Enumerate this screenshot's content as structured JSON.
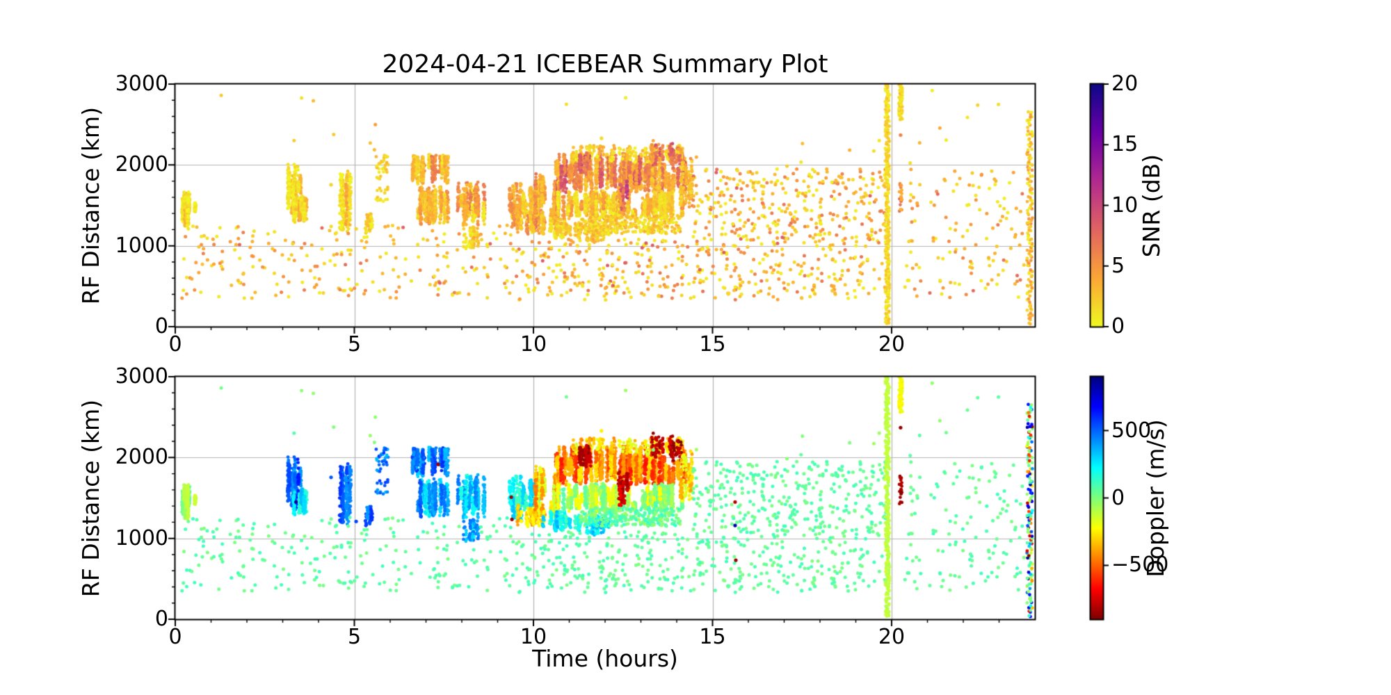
{
  "chart_data": {
    "type": "scatter",
    "title": "2024-04-21 ICEBEAR Summary Plot",
    "x": {
      "label": "Time (hours)",
      "lim": [
        0,
        24
      ],
      "ticks": [
        0,
        5,
        10,
        15,
        20
      ],
      "tick_labels": [
        "0",
        "5",
        "10",
        "15",
        "20"
      ],
      "minor_step": 1
    },
    "y": {
      "label": "RF Distance (km)",
      "lim": [
        0,
        3000
      ],
      "ticks": [
        0,
        1000,
        2000,
        3000
      ],
      "tick_labels": [
        "0",
        "1000",
        "2000",
        "3000"
      ],
      "minor_step": 200
    },
    "grid": {
      "x_values": [
        5,
        10,
        15,
        20
      ],
      "y_values": [
        1000,
        2000
      ],
      "color": "#b3b3b3"
    },
    "panels": [
      {
        "id": "snr",
        "colorbar": {
          "label": "SNR (dB)",
          "range": [
            0,
            20
          ],
          "ticks": [
            0,
            5,
            10,
            15,
            20
          ],
          "tick_labels": [
            "0",
            "5",
            "10",
            "15",
            "20"
          ],
          "colormap": "plasma_r"
        }
      },
      {
        "id": "doppler",
        "colorbar": {
          "label": "Doppler (m/s)",
          "range": [
            -900,
            900
          ],
          "ticks": [
            -500,
            0,
            500
          ],
          "tick_labels": [
            "−500",
            "0",
            "500"
          ],
          "colormap": "jet_r"
        }
      }
    ],
    "colormaps": {
      "plasma_r": {
        "top": "#0d0887",
        "bottom": "#f0f921",
        "stops": [
          [
            0,
            "#0d0887"
          ],
          [
            0.2,
            "#6a00a8"
          ],
          [
            0.4,
            "#b12a90"
          ],
          [
            0.6,
            "#e16462"
          ],
          [
            0.8,
            "#fca636"
          ],
          [
            1,
            "#f0f921"
          ]
        ]
      },
      "jet_r": {
        "top": "#00007f",
        "bottom": "#7f0000",
        "stops": [
          [
            0,
            "#00007f"
          ],
          [
            0.125,
            "#0000ff"
          ],
          [
            0.375,
            "#00ffff"
          ],
          [
            0.5,
            "#7dff7a"
          ],
          [
            0.625,
            "#ffff00"
          ],
          [
            0.875,
            "#ff0000"
          ],
          [
            1,
            "#7f0000"
          ]
        ]
      }
    },
    "point_groups": [
      {
        "label": "echo-00h",
        "style": "streak",
        "t": [
          0.12,
          0.6
        ],
        "r": [
          1230,
          1700
        ],
        "n": 380,
        "snr": [
          0.5,
          4.5
        ],
        "dop": [
          -160,
          60
        ]
      },
      {
        "label": "echo-03h-a",
        "style": "streak",
        "t": [
          3.15,
          3.55
        ],
        "r": [
          1350,
          2060
        ],
        "n": 300,
        "snr": [
          0.5,
          5
        ],
        "dop": [
          360,
          660
        ]
      },
      {
        "label": "echo-03h-b",
        "style": "streak",
        "t": [
          3.3,
          3.68
        ],
        "r": [
          1280,
          1620
        ],
        "n": 260,
        "snr": [
          0.5,
          4
        ],
        "dop": [
          140,
          380
        ]
      },
      {
        "label": "echo-04h",
        "style": "streak",
        "t": [
          4.55,
          4.9
        ],
        "r": [
          1150,
          1950
        ],
        "n": 260,
        "snr": [
          0.5,
          5
        ],
        "dop": [
          360,
          640
        ]
      },
      {
        "label": "echo-05h-a",
        "style": "streak",
        "t": [
          5.3,
          5.5
        ],
        "r": [
          1100,
          1500
        ],
        "n": 60,
        "snr": [
          0.5,
          3
        ],
        "dop": [
          380,
          620
        ]
      },
      {
        "label": "echo-05h-b",
        "style": "blob",
        "t": [
          5.6,
          5.95
        ],
        "r": [
          1550,
          2120
        ],
        "n": 45,
        "snr": [
          0.5,
          3.5
        ],
        "dop": [
          330,
          600
        ]
      },
      {
        "label": "echo-07h-top",
        "style": "streak",
        "t": [
          6.55,
          7.65
        ],
        "r": [
          1750,
          2130
        ],
        "n": 500,
        "snr": [
          1,
          6.5
        ],
        "dop": [
          250,
          620
        ]
      },
      {
        "label": "echo-07h-low",
        "style": "streak",
        "t": [
          6.7,
          7.75
        ],
        "r": [
          1260,
          1750
        ],
        "n": 520,
        "snr": [
          1,
          6
        ],
        "dop": [
          150,
          520
        ]
      },
      {
        "label": "echo-08h",
        "style": "streak",
        "t": [
          7.85,
          8.65
        ],
        "r": [
          1250,
          1800
        ],
        "n": 480,
        "snr": [
          1,
          7
        ],
        "dop": [
          150,
          470
        ]
      },
      {
        "label": "echo-08h-deep",
        "style": "streak",
        "t": [
          8.05,
          8.5
        ],
        "r": [
          950,
          1260
        ],
        "n": 70,
        "snr": [
          0.5,
          4
        ],
        "dop": [
          200,
          500
        ]
      },
      {
        "label": "echo-09h-cyan",
        "style": "streak",
        "t": [
          9.3,
          10.15
        ],
        "r": [
          1200,
          1780
        ],
        "n": 420,
        "snr": [
          1,
          6.5
        ],
        "dop": [
          90,
          420
        ]
      },
      {
        "label": "echo-10h-neg-low",
        "style": "streak",
        "t": [
          9.55,
          10.3
        ],
        "r": [
          1130,
          1420
        ],
        "n": 150,
        "snr": [
          1.5,
          7
        ],
        "dop": [
          -420,
          -140
        ]
      },
      {
        "label": "echo-10h-neg",
        "style": "streak",
        "t": [
          10.05,
          10.7
        ],
        "r": [
          1250,
          1900
        ],
        "n": 380,
        "snr": [
          2,
          7.5
        ],
        "dop": [
          -470,
          -120
        ]
      },
      {
        "label": "echo-10h-cyan-bottom",
        "style": "streak",
        "t": [
          10.25,
          11.35
        ],
        "r": [
          1080,
          1360
        ],
        "n": 260,
        "snr": [
          0.5,
          4.5
        ],
        "dop": [
          110,
          360
        ]
      },
      {
        "label": "main-band-orange",
        "style": "streak",
        "t": [
          10.6,
          14.35
        ],
        "r": [
          1650,
          2160
        ],
        "n": 1900,
        "snr": [
          2.5,
          9.5
        ],
        "dop": [
          -640,
          -240
        ]
      },
      {
        "label": "main-band-mid",
        "style": "streak",
        "t": [
          10.65,
          14.3
        ],
        "r": [
          1330,
          1680
        ],
        "n": 1500,
        "snr": [
          0.5,
          5
        ],
        "dop": [
          -240,
          90
        ]
      },
      {
        "label": "main-band-upper-fringe",
        "style": "streak",
        "t": [
          11.05,
          14.25
        ],
        "r": [
          2020,
          2260
        ],
        "n": 240,
        "snr": [
          0.5,
          4
        ],
        "dop": [
          -430,
          -140
        ]
      },
      {
        "label": "maroon-patch-1",
        "style": "streak",
        "t": [
          11.15,
          11.6
        ],
        "r": [
          1880,
          2160
        ],
        "n": 130,
        "snr": [
          5,
          13
        ],
        "dop": [
          -900,
          -730
        ]
      },
      {
        "label": "maroon-diagonal",
        "style": "streak",
        "t": [
          12.35,
          12.75
        ],
        "r": [
          1380,
          1850
        ],
        "n": 110,
        "snr": [
          4,
          11
        ],
        "dop": [
          -880,
          -640
        ]
      },
      {
        "label": "maroon-patch-2",
        "style": "streak",
        "t": [
          13.3,
          14.15
        ],
        "r": [
          1950,
          2310
        ],
        "n": 100,
        "snr": [
          4,
          10
        ],
        "dop": [
          -900,
          -720
        ]
      },
      {
        "label": "cyan-pocket",
        "style": "streak",
        "t": [
          11.4,
          12.15
        ],
        "r": [
          1040,
          1300
        ],
        "n": 130,
        "snr": [
          0.5,
          4
        ],
        "dop": [
          120,
          380
        ]
      },
      {
        "label": "green-apron",
        "style": "blob",
        "t": [
          11.3,
          14.1
        ],
        "r": [
          1150,
          1380
        ],
        "n": 330,
        "snr": [
          0.5,
          4
        ],
        "dop": [
          -60,
          140
        ]
      },
      {
        "label": "band-tail",
        "style": "streak",
        "t": [
          14.1,
          14.45
        ],
        "r": [
          1450,
          2100
        ],
        "n": 140,
        "snr": [
          1,
          5
        ],
        "dop": [
          -420,
          -160
        ]
      },
      {
        "label": "background-early",
        "style": "spray",
        "t": [
          0.15,
          9.4
        ],
        "r": [
          330,
          1260
        ],
        "n": 230,
        "snr": [
          0.5,
          6.5
        ],
        "dop": [
          0,
          115
        ]
      },
      {
        "label": "background-mid-low",
        "style": "spray",
        "t": [
          9.4,
          19.85
        ],
        "r": [
          330,
          1080
        ],
        "n": 420,
        "snr": [
          0.5,
          7
        ],
        "dop": [
          0,
          115
        ]
      },
      {
        "label": "background-mid-high",
        "style": "spray",
        "t": [
          14.45,
          19.85
        ],
        "r": [
          1080,
          1950
        ],
        "n": 330,
        "snr": [
          0.5,
          7
        ],
        "dop": [
          0,
          115
        ]
      },
      {
        "label": "background-late",
        "style": "spray",
        "t": [
          20.35,
          23.7
        ],
        "r": [
          350,
          1950
        ],
        "n": 130,
        "snr": [
          0.5,
          6
        ],
        "dop": [
          0,
          115
        ]
      },
      {
        "label": "background-high-range",
        "style": "spray",
        "t": [
          0.5,
          23.5
        ],
        "r": [
          1980,
          2920
        ],
        "n": 26,
        "snr": [
          0.5,
          3
        ],
        "dop": [
          -60,
          90
        ]
      },
      {
        "label": "interference-column-1952UT",
        "style": "column",
        "t": [
          19.82,
          19.94
        ],
        "r": [
          20,
          2990
        ],
        "n": 300,
        "snr": [
          0.5,
          3
        ],
        "dop": [
          -150,
          -80
        ]
      },
      {
        "label": "column-2015UT-top",
        "style": "column",
        "t": [
          20.2,
          20.3
        ],
        "r": [
          2560,
          3000
        ],
        "n": 55,
        "snr": [
          0.5,
          3
        ],
        "dop": [
          -260,
          -170
        ]
      },
      {
        "label": "column-2015UT-maroon",
        "style": "blob",
        "t": [
          20.21,
          20.29
        ],
        "r": [
          1390,
          1770
        ],
        "n": 22,
        "snr": [
          3.5,
          8
        ],
        "dop": [
          -890,
          -790
        ]
      },
      {
        "label": "edge-column-2350UT",
        "style": "column",
        "t": [
          23.78,
          23.93
        ],
        "r": [
          40,
          2660
        ],
        "n": 150,
        "snr": [
          0.5,
          5.5
        ],
        "dop": [
          -900,
          900
        ],
        "dopmode": "uniform"
      }
    ],
    "singles": [
      [
        3.37,
        1450,
        3,
        830
      ],
      [
        4.35,
        1755,
        2,
        520
      ],
      [
        5.05,
        1210,
        2,
        560
      ],
      [
        7.34,
        1915,
        7,
        -850
      ],
      [
        8.45,
        1000,
        2.5,
        470
      ],
      [
        9.38,
        1510,
        6,
        -850
      ],
      [
        9.4,
        1235,
        5,
        -860
      ],
      [
        11.9,
        2330,
        1.5,
        -250
      ],
      [
        15.63,
        1450,
        6,
        -800
      ],
      [
        15.63,
        1160,
        5,
        820
      ],
      [
        15.65,
        730,
        5,
        -860
      ],
      [
        20.25,
        2370,
        6,
        -860
      ]
    ]
  }
}
